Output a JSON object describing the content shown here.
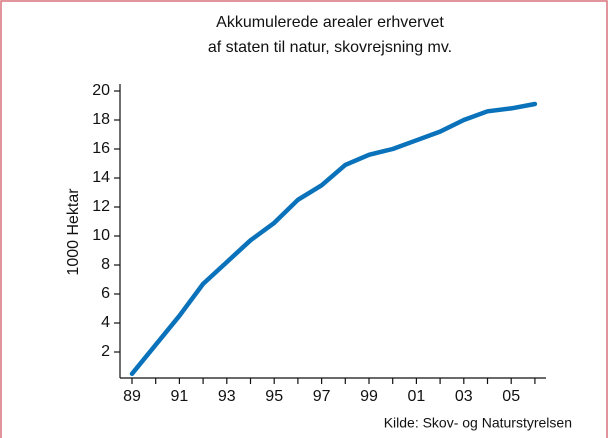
{
  "chart_data": {
    "type": "line",
    "title": [
      "Akkumulerede arealer erhvervet",
      "af staten til natur, skovrejsning mv."
    ],
    "y_label": "1000 Hektar",
    "source": "Kilde: Skov- og Naturstyrelsen",
    "categories": [
      "89",
      null,
      "91",
      null,
      "93",
      null,
      "95",
      null,
      "97",
      null,
      "99",
      null,
      "01",
      null,
      "03",
      null,
      "05",
      null
    ],
    "series": [
      {
        "name": "Akkumulerede arealer",
        "color": "#0a72ba",
        "values": [
          0.5,
          2.5,
          4.5,
          6.7,
          8.2,
          9.7,
          10.9,
          12.5,
          13.5,
          14.9,
          15.6,
          16.0,
          16.6,
          17.2,
          18.0,
          18.6,
          18.8,
          19.1
        ]
      }
    ],
    "ylim": [
      0,
      20
    ],
    "yticks": [
      2,
      4,
      6,
      8,
      10,
      12,
      14,
      16,
      18,
      20
    ],
    "grid": false
  }
}
